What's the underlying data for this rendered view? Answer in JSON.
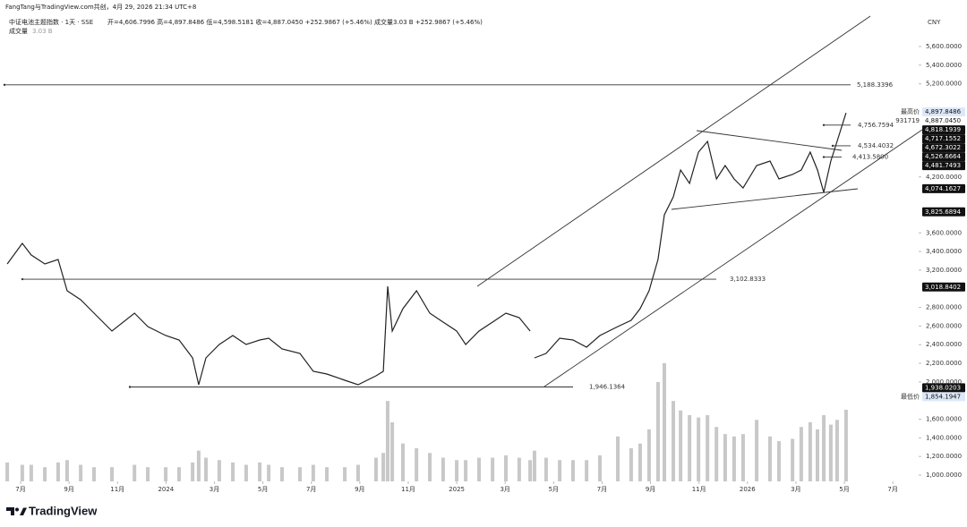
{
  "chart_data": {
    "type": "line",
    "source": "FangTang与TradingView.com共创，4月 29, 2026 21:34 UTC+8",
    "title": "中证电池主题指数 · 1天 · SSE",
    "ohlc": "开=4,606.7996 高=4,897.8486 低=4,598.5181 收=4,887.0450 +252.9867 (+5.46%) 成交量3.03 B +252.9867 (+5.46%)",
    "volume_value": "3.03 B",
    "currency": "CNY",
    "logo": "TradingView",
    "x": [
      5.45,
      6.07,
      6.44,
      7.0,
      7.55,
      7.92,
      8.48,
      9.03,
      9.77,
      10.7,
      11.25,
      11.99,
      12.54,
      13.1,
      13.35,
      13.65,
      14.2,
      14.76,
      15.31,
      15.87,
      16.24,
      16.79,
      17.53,
      18.08,
      18.64,
      19.38,
      19.93,
      20.67,
      20.97,
      21.15,
      21.34,
      21.78,
      22.34,
      22.89,
      23.44,
      24.0,
      24.37,
      24.92,
      25.48,
      26.03,
      26.58,
      27.03,
      27.12,
      27.21,
      27.69,
      28.25,
      28.8,
      29.36,
      29.91,
      30.65,
      31.2,
      31.57,
      31.94,
      32.31,
      32.57,
      32.94,
      33.24,
      33.61,
      33.98,
      34.35,
      34.72,
      35.08,
      35.45,
      35.82,
      36.38,
      36.93,
      37.3,
      37.86,
      38.22,
      38.59,
      38.89,
      39.15,
      39.44,
      39.7,
      40.07
    ],
    "series": [
      {
        "color": "#222222",
        "values": [
          3266,
          3487,
          3362,
          3266,
          3314,
          2978,
          2882,
          2738,
          2546,
          2738,
          2594,
          2498,
          2450,
          2258,
          1970,
          2258,
          2402,
          2498,
          2402,
          2450,
          2469,
          2354,
          2306,
          2114,
          2085,
          2018,
          1970,
          2066,
          2114,
          3026,
          2546,
          2786,
          2978,
          2738,
          2642,
          2546,
          2402,
          2546,
          2642,
          2738,
          2690,
          2546,
          null,
          2258,
          2306,
          2469,
          2450,
          2373,
          2498,
          2594,
          2661,
          2786,
          2978,
          3314,
          3794,
          3987,
          4275,
          4131,
          4467,
          4582,
          4179,
          4323,
          4179,
          4083,
          4323,
          4371,
          4179,
          4227,
          4275,
          4467,
          4275,
          4035,
          4371,
          4582,
          4887.045
        ]
      },
      {
        "name": "成交量",
        "axis": "y2",
        "color": "#c8c8c8",
        "values": [
          0.8,
          0.7,
          0.7,
          0.6,
          0.8,
          0.9,
          0.7,
          0.6,
          0.6,
          0.7,
          0.6,
          0.6,
          0.6,
          0.8,
          1.3,
          1.0,
          0.9,
          0.8,
          0.7,
          0.8,
          0.7,
          0.6,
          0.6,
          0.7,
          0.6,
          0.6,
          0.7,
          1.0,
          1.2,
          3.4,
          2.5,
          1.6,
          1.4,
          1.2,
          1.0,
          0.9,
          0.9,
          1.0,
          1.0,
          1.1,
          1.0,
          0.9,
          null,
          1.3,
          1.0,
          0.9,
          0.9,
          0.9,
          1.1,
          1.9,
          1.4,
          1.6,
          2.2,
          4.2,
          5.0,
          3.4,
          3.0,
          2.8,
          2.7,
          2.8,
          2.3,
          2.0,
          1.9,
          2.0,
          2.6,
          1.9,
          1.7,
          1.8,
          2.3,
          2.5,
          2.2,
          2.8,
          2.4,
          2.6,
          3.03
        ]
      }
    ],
    "xlim": [
      5.335,
      42.844
    ],
    "xticks": [
      {
        "value": 6,
        "label": "7月"
      },
      {
        "value": 8,
        "label": "9月"
      },
      {
        "value": 10,
        "label": "11月"
      },
      {
        "value": 12,
        "label": "2024"
      },
      {
        "value": 14,
        "label": "3月"
      },
      {
        "value": 16,
        "label": "5月"
      },
      {
        "value": 18,
        "label": "7月"
      },
      {
        "value": 20,
        "label": "9月"
      },
      {
        "value": 22,
        "label": "11月"
      },
      {
        "value": 24,
        "label": "2025"
      },
      {
        "value": 26,
        "label": "3月"
      },
      {
        "value": 28,
        "label": "5月"
      },
      {
        "value": 30,
        "label": "7月"
      },
      {
        "value": 32,
        "label": "9月"
      },
      {
        "value": 34,
        "label": "11月"
      },
      {
        "value": 36,
        "label": "2026"
      },
      {
        "value": 38,
        "label": "3月"
      },
      {
        "value": 40,
        "label": "5月"
      },
      {
        "value": 42,
        "label": "7月"
      }
    ],
    "ylim": [
      933,
      5907
    ],
    "yticks": [
      {
        "value": 1000,
        "label": "1,000.0000"
      },
      {
        "value": 1200,
        "label": "1,200.0000"
      },
      {
        "value": 1400,
        "label": "1,400.0000"
      },
      {
        "value": 1600,
        "label": "1,600.0000"
      },
      {
        "value": 2000,
        "label": "2,000.0000"
      },
      {
        "value": 2200,
        "label": "2,200.0000"
      },
      {
        "value": 2400,
        "label": "2,400.0000"
      },
      {
        "value": 2600,
        "label": "2,600.0000"
      },
      {
        "value": 2800,
        "label": "2,800.0000"
      },
      {
        "value": 3200,
        "label": "3,200.0000"
      },
      {
        "value": 3400,
        "label": "3,400.0000"
      },
      {
        "value": 3600,
        "label": "3,600.0000"
      },
      {
        "value": 4200,
        "label": "4,200.0000"
      },
      {
        "value": 5200,
        "label": "5,200.0000"
      },
      {
        "value": 5400,
        "label": "5,400.0000"
      },
      {
        "value": 5600,
        "label": "5,600.0000"
      }
    ],
    "y2lim": [
      0,
      19.6
    ],
    "grid": false,
    "levels": [
      {
        "value": 5188.3396,
        "label": "5,188.3396"
      },
      {
        "value": 4756.7594,
        "label": "4,756.7594"
      },
      {
        "value": 4534.4032,
        "label": "4,534.4032"
      },
      {
        "value": 4413.58,
        "label": "4,413.5800"
      },
      {
        "value": 3102.8333,
        "label": "3,102.8333"
      },
      {
        "value": 1946.1364,
        "label": "1,946.1364"
      }
    ],
    "axis_markers": [
      {
        "value": 4897.8486,
        "label": "4,897.8486",
        "title": "最高价",
        "color": "#dce8f8"
      },
      {
        "value": 4887.045,
        "label": "4,887.0450",
        "title": "931719",
        "color": "#ffffff"
      },
      {
        "value": 4818.1939,
        "label": "4,818.1939",
        "color": "#111111"
      },
      {
        "value": 4717.1552,
        "label": "4,717.1552",
        "color": "#111111"
      },
      {
        "value": 4672.3022,
        "label": "4,672.3022",
        "color": "#111111"
      },
      {
        "value": 4526.6664,
        "label": "4,526.6664",
        "color": "#111111"
      },
      {
        "value": 4481.7493,
        "label": "4,481.7493",
        "color": "#111111"
      },
      {
        "value": 4074.1627,
        "label": "4,074.1627",
        "color": "#111111"
      },
      {
        "value": 3825.6894,
        "label": "3,825.6894",
        "color": "#111111"
      },
      {
        "value": 3018.8402,
        "label": "3,018.8402",
        "color": "#111111"
      },
      {
        "value": 1938.0203,
        "label": "1,938.0203",
        "color": "#111111"
      },
      {
        "value": 1854.1947,
        "label": "1,854.1947",
        "title": "最低价",
        "color": "#dce8f8"
      }
    ]
  }
}
